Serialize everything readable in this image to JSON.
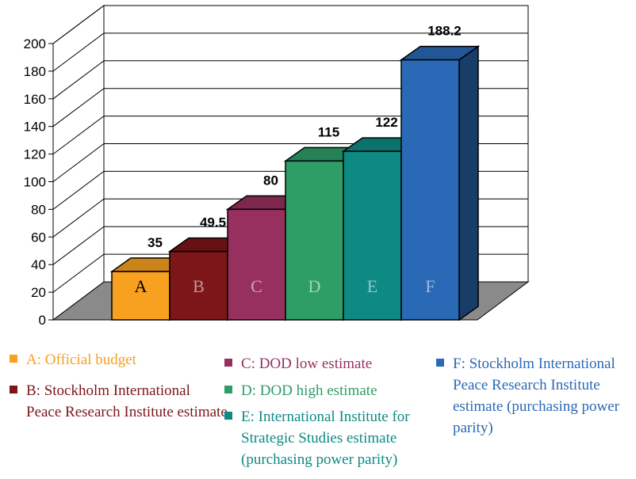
{
  "chart_data": {
    "type": "bar",
    "categories": [
      "A",
      "B",
      "C",
      "D",
      "E",
      "F"
    ],
    "values": [
      35,
      49.5,
      80,
      115,
      122,
      188.2
    ],
    "data_labels": [
      "35",
      "49.5",
      "80",
      "115",
      "122",
      "188.2"
    ],
    "yticks": [
      "0",
      "20",
      "40",
      "60",
      "80",
      "100",
      "120",
      "140",
      "160",
      "180",
      "200"
    ],
    "ylim": [
      0,
      200
    ],
    "colors": [
      "#f8a020",
      "#7c1618",
      "#98305f",
      "#2e9e66",
      "#0d8a84",
      "#2a69b5"
    ],
    "grid": true,
    "three_d": true,
    "legend_position": "bottom"
  },
  "legend": {
    "items": [
      {
        "text": "A: Official budget",
        "color": "#f8a020"
      },
      {
        "text": "B: Stockholm International Peace Research Institute estimate",
        "color": "#7c1618"
      },
      {
        "text": "C: DOD low estimate",
        "color": "#98305f"
      },
      {
        "text": "D: DOD high estimate",
        "color": "#2e9e66"
      },
      {
        "text": "E: International Institute for Strategic Studies estimate (purchasing power parity)",
        "color": "#0d8a84"
      },
      {
        "text": "F: Stockholm International Peace Research Institute estimate (purchasing power parity)",
        "color": "#2a69b5"
      }
    ]
  }
}
